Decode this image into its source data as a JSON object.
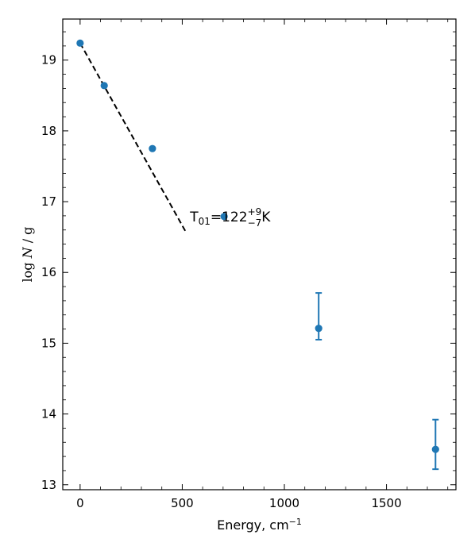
{
  "chart_data": {
    "type": "scatter",
    "title": "",
    "xlabel": {
      "base": "Energy, cm",
      "sup": "−1"
    },
    "ylabel": {
      "prefix": "log ",
      "var": "N",
      "suffix": " / g"
    },
    "xlim": [
      -85,
      1840
    ],
    "ylim": [
      12.93,
      19.58
    ],
    "xticks": [
      0,
      500,
      1000,
      1500
    ],
    "yticks": [
      13,
      14,
      15,
      16,
      17,
      18,
      19
    ],
    "grid": false,
    "series": [
      {
        "type": "points",
        "color": "#1f77b4",
        "points": [
          {
            "x": 0,
            "y": 19.24
          },
          {
            "x": 118,
            "y": 18.64
          },
          {
            "x": 354,
            "y": 17.75
          },
          {
            "x": 705,
            "y": 16.79
          },
          {
            "x": 1168,
            "y": 15.21,
            "err_low": 0.16,
            "err_high": 0.5
          },
          {
            "x": 1740,
            "y": 13.5,
            "err_low": 0.28,
            "err_high": 0.42
          }
        ]
      },
      {
        "type": "fit-line",
        "color": "#000000",
        "style": "dashed",
        "x": [
          0,
          520
        ],
        "y": [
          19.24,
          16.56
        ]
      }
    ],
    "annotation": {
      "base": "T",
      "sub": "01",
      "eq": "=122",
      "sup": "+9",
      "sub2": "−7",
      "unit": "K",
      "x": 538,
      "y": 16.72
    }
  }
}
